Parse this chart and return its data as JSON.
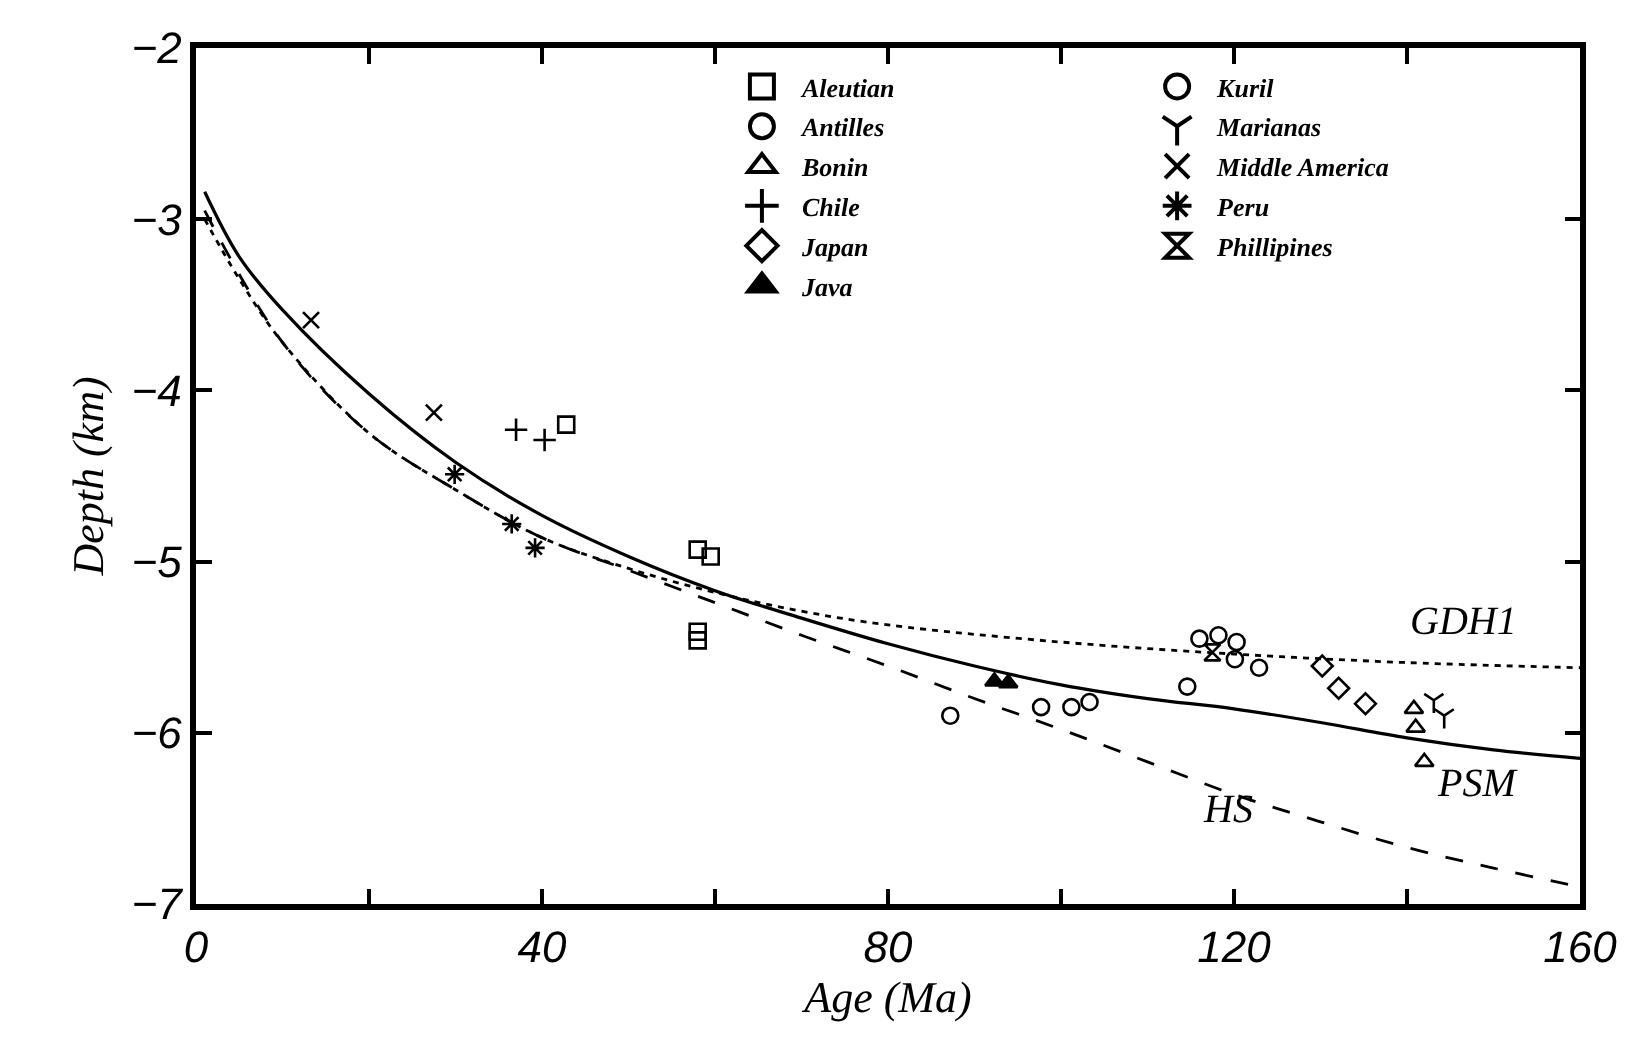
{
  "chart_data": {
    "type": "scatter",
    "xlabel": "Age (Ma)",
    "ylabel": "Depth (km)",
    "xlim": [
      0,
      160
    ],
    "xticks": [
      0,
      40,
      80,
      120,
      160
    ],
    "ylim": [
      -7,
      -2
    ],
    "yticks": [
      -7,
      -6,
      -5,
      -4,
      -3,
      -2
    ],
    "legend": "top",
    "series": [
      {
        "name": "Aleutian",
        "marker": "square",
        "color": "#000000",
        "x": [
          42.8,
          58.0,
          59.5,
          58.0,
          58.0
        ],
        "values": [
          -4.2,
          -4.93,
          -4.97,
          -5.41,
          -5.46
        ]
      },
      {
        "name": "Antilles",
        "marker": "circle",
        "color": "#000000",
        "x": [
          87.2,
          97.7,
          101.2,
          103.3
        ],
        "values": [
          -5.9,
          -5.85,
          -5.85,
          -5.82
        ]
      },
      {
        "name": "Bonin",
        "marker": "triangle",
        "color": "#000000",
        "x": [
          140.8,
          141.0,
          142.0
        ],
        "values": [
          -5.86,
          -5.97,
          -6.17
        ]
      },
      {
        "name": "Chile",
        "marker": "cross",
        "color": "#000000",
        "x": [
          37.0,
          40.3
        ],
        "values": [
          -4.23,
          -4.29
        ]
      },
      {
        "name": "Japan",
        "marker": "diamond",
        "color": "#000000",
        "x": [
          130.2,
          132.1,
          135.2
        ],
        "values": [
          -5.61,
          -5.74,
          -5.83
        ]
      },
      {
        "name": "Java",
        "marker": "triangle",
        "color": "#000000",
        "x": [
          92.3,
          93.9
        ],
        "values": [
          -5.7,
          -5.71
        ]
      },
      {
        "name": "Kuril",
        "marker": "circle",
        "color": "#000000",
        "x": [
          114.6,
          116.0,
          118.2,
          120.3,
          120.1,
          122.9
        ],
        "values": [
          -5.73,
          -5.45,
          -5.43,
          -5.47,
          -5.57,
          -5.62
        ]
      },
      {
        "name": "Marianas",
        "color": "#000000",
        "x": [
          143.1,
          144.3
        ],
        "values": [
          -5.81,
          -5.9
        ]
      },
      {
        "name": "Middle America",
        "color": "#000000",
        "x": [
          13.3,
          27.5
        ],
        "values": [
          -3.59,
          -4.13
        ]
      },
      {
        "name": "Peru",
        "color": "#000000",
        "x": [
          29.9,
          36.5,
          39.2
        ],
        "values": [
          -4.49,
          -4.78,
          -4.92
        ]
      },
      {
        "name": "Phillipines",
        "color": "#000000",
        "x": [
          117.5
        ],
        "values": [
          -5.53
        ]
      },
      {
        "type": "line",
        "line_style": "solid",
        "marker": "none",
        "color": "#000000",
        "x": [
          1,
          5,
          10,
          20,
          30,
          40,
          50,
          60,
          70,
          80,
          90,
          100,
          110,
          120,
          130,
          140,
          150,
          160
        ],
        "values": [
          -2.84,
          -3.22,
          -3.53,
          -4.02,
          -4.42,
          -4.73,
          -4.97,
          -5.17,
          -5.33,
          -5.48,
          -5.61,
          -5.72,
          -5.8,
          -5.86,
          -5.94,
          -6.03,
          -6.1,
          -6.15
        ]
      },
      {
        "type": "line",
        "line_style": "dotted",
        "marker": "none",
        "color": "#000000",
        "x": [
          1,
          5,
          10,
          20,
          30,
          40,
          50,
          60,
          70,
          80,
          100,
          120,
          140,
          160
        ],
        "values": [
          -3.0,
          -3.35,
          -3.72,
          -4.25,
          -4.58,
          -4.86,
          -5.04,
          -5.18,
          -5.29,
          -5.37,
          -5.47,
          -5.54,
          -5.59,
          -5.62
        ]
      },
      {
        "type": "line",
        "line_style": "dashed",
        "marker": "none",
        "color": "#000000",
        "x": [
          1,
          10,
          20,
          30,
          40,
          50,
          60,
          70,
          80,
          90,
          100,
          110,
          120,
          130,
          140,
          150,
          160
        ],
        "values": [
          -2.95,
          -3.72,
          -4.25,
          -4.58,
          -4.86,
          -5.05,
          -5.24,
          -5.43,
          -5.61,
          -5.8,
          -5.98,
          -6.17,
          -6.36,
          -6.52,
          -6.67,
          -6.79,
          -6.9
        ]
      }
    ],
    "annotations": [
      "GDH1",
      "PSM",
      "HS"
    ]
  }
}
